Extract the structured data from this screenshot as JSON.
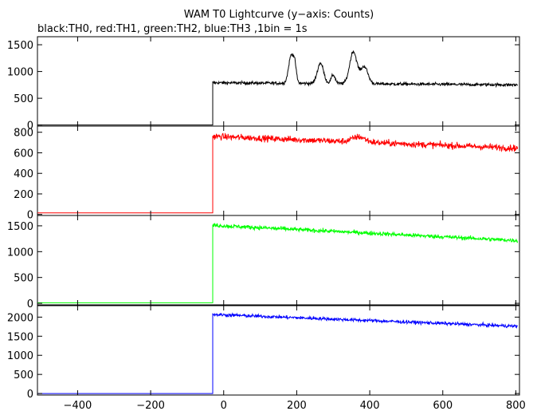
{
  "chart_data": {
    "type": "line",
    "title": "WAM T0 Lightcurve (y−axis: Counts)",
    "subtitle": "black:TH0, red:TH1, green:TH2, blue:TH3 ,1bin = 1s",
    "xlim": [
      -510,
      810
    ],
    "x_ticks": [
      -400,
      -200,
      0,
      200,
      400,
      600,
      800
    ],
    "x_tick_labels": [
      "−400",
      "−200",
      "0",
      "200",
      "400",
      "600",
      "800"
    ],
    "grid": false,
    "panels": [
      {
        "series_name": "TH0",
        "color": "#000000",
        "ylim": [
          -20,
          1650
        ],
        "y_ticks": [
          0,
          500,
          1000,
          1500
        ],
        "pre_level": 0,
        "step_x": -30,
        "after_step_level": 790,
        "end_level": 750,
        "noise": 28,
        "bursts": [
          {
            "center": 185,
            "width": 10,
            "height": 520
          },
          {
            "center": 195,
            "width": 6,
            "height": 250
          },
          {
            "center": 265,
            "width": 12,
            "height": 380
          },
          {
            "center": 300,
            "width": 8,
            "height": 160
          },
          {
            "center": 355,
            "width": 14,
            "height": 600
          },
          {
            "center": 385,
            "width": 14,
            "height": 320
          }
        ]
      },
      {
        "series_name": "TH1",
        "color": "#ff0000",
        "ylim": [
          -10,
          860
        ],
        "y_ticks": [
          0,
          200,
          400,
          600,
          800
        ],
        "pre_level": 15,
        "step_x": -30,
        "after_step_level": 760,
        "end_level": 645,
        "noise": 30,
        "bursts": [
          {
            "center": 370,
            "width": 25,
            "height": 50
          }
        ]
      },
      {
        "series_name": "TH2",
        "color": "#00ff00",
        "ylim": [
          -30,
          1700
        ],
        "y_ticks": [
          0,
          500,
          1000,
          1500
        ],
        "pre_level": 10,
        "step_x": -30,
        "after_step_level": 1510,
        "end_level": 1215,
        "noise": 38,
        "bursts": []
      },
      {
        "series_name": "TH3",
        "color": "#0000ff",
        "ylim": [
          -40,
          2300
        ],
        "y_ticks": [
          0,
          500,
          1000,
          1500,
          2000
        ],
        "pre_level": 0,
        "step_x": -30,
        "after_step_level": 2070,
        "end_level": 1760,
        "noise": 42,
        "bursts": []
      }
    ]
  }
}
